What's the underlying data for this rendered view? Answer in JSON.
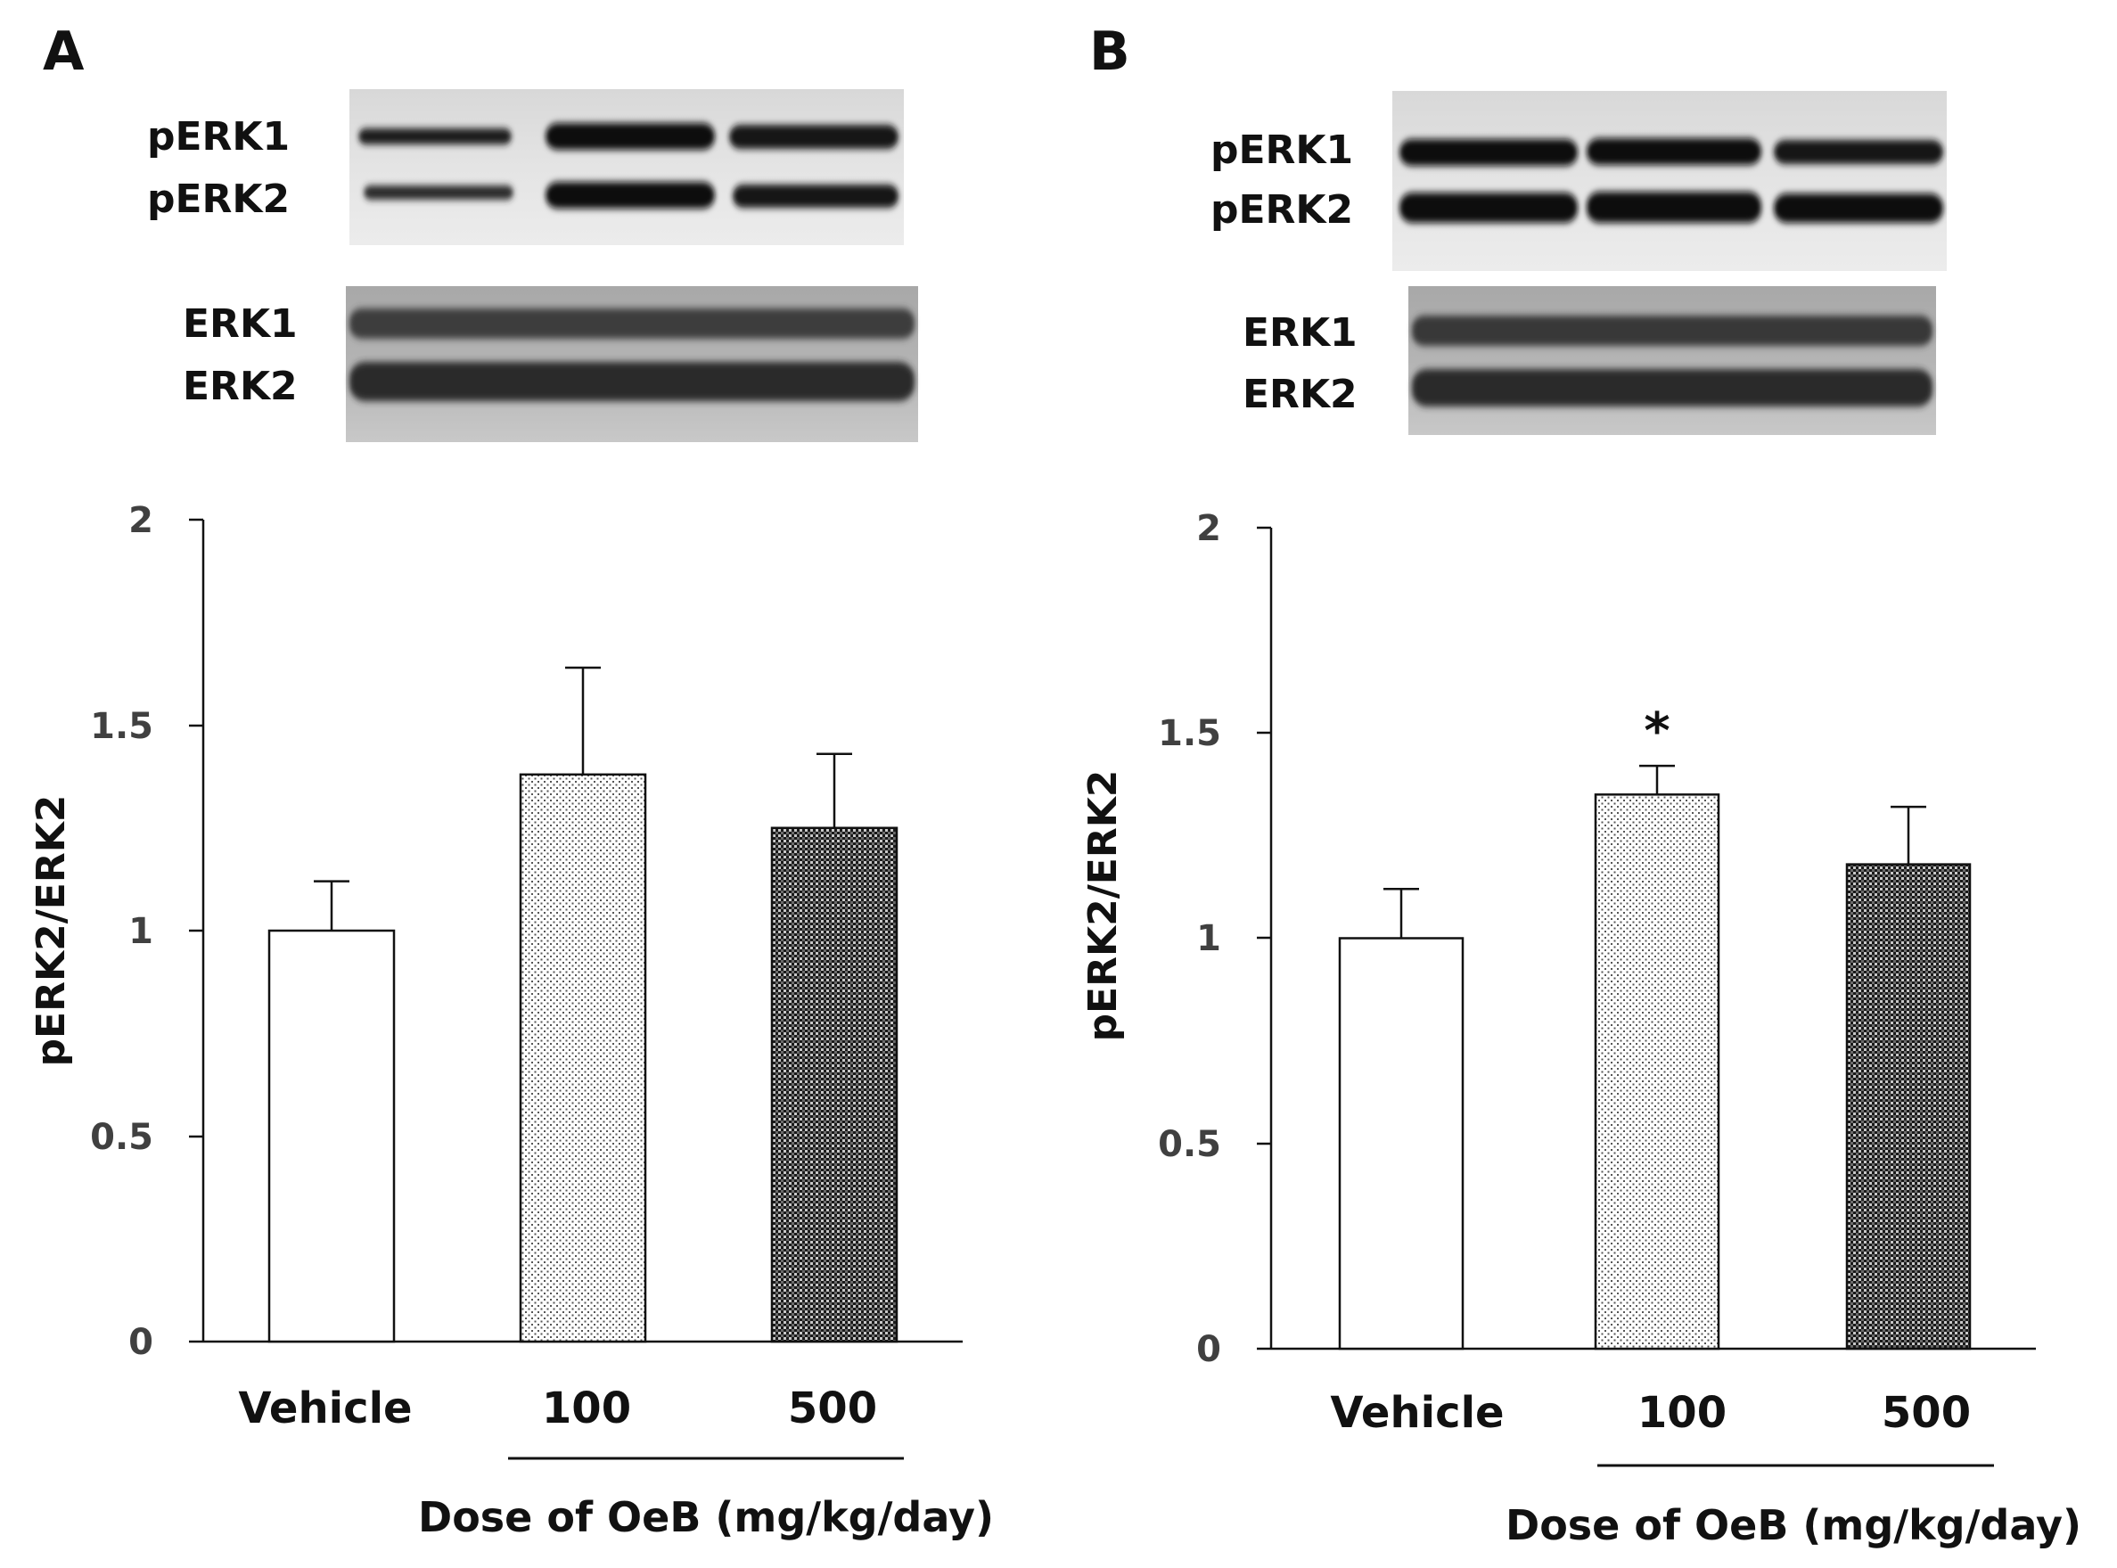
{
  "chart_data": [
    {
      "panel": "A",
      "type": "bar",
      "categories": [
        "Vehicle",
        "100",
        "500"
      ],
      "values": [
        1.0,
        1.38,
        1.25
      ],
      "errors": [
        0.12,
        0.26,
        0.18
      ],
      "bar_fills": [
        "white",
        "light-dots",
        "dense-dots"
      ],
      "ylabel": "pERK2/ERK2",
      "xlabel": "Dose of OeB (mg/kg/day)",
      "ylim": [
        0,
        2
      ],
      "yticks": [
        "0",
        "0.5",
        "1",
        "1.5",
        "2"
      ],
      "significance": [
        "",
        "",
        ""
      ],
      "blot_labels": [
        "pERK1",
        "pERK2",
        "ERK1",
        "ERK2"
      ]
    },
    {
      "panel": "B",
      "type": "bar",
      "categories": [
        "Vehicle",
        "100",
        "500"
      ],
      "values": [
        1.0,
        1.35,
        1.18
      ],
      "errors": [
        0.12,
        0.07,
        0.14
      ],
      "bar_fills": [
        "white",
        "light-dots",
        "dense-dots"
      ],
      "ylabel": "pERK2/ERK2",
      "xlabel": "Dose of OeB (mg/kg/day)",
      "ylim": [
        0,
        2
      ],
      "yticks": [
        "0",
        "0.5",
        "1",
        "1.5",
        "2"
      ],
      "significance": [
        "",
        "*",
        ""
      ],
      "blot_labels": [
        "pERK1",
        "pERK2",
        "ERK1",
        "ERK2"
      ]
    }
  ]
}
